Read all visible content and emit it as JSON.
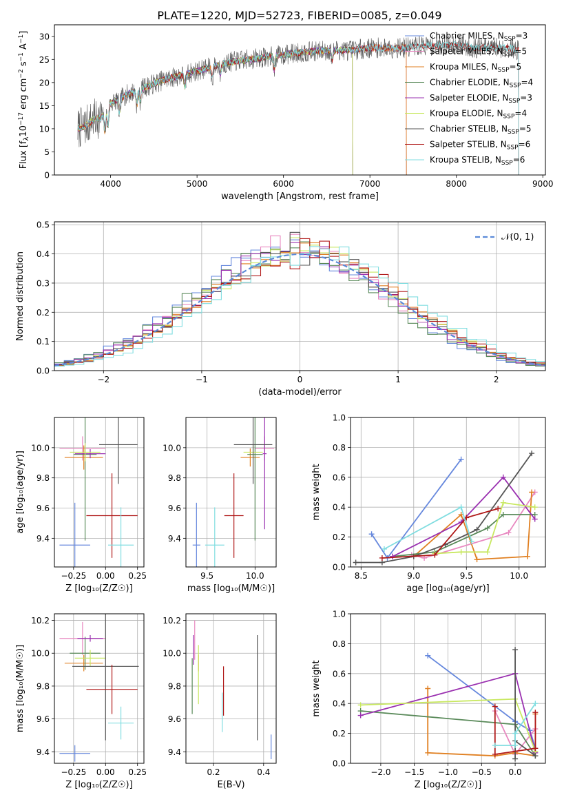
{
  "figure": {
    "title": "PLATE=1220, MJD=52723, FIBERID=0085, z=0.049"
  },
  "colors": {
    "Chabrier MILES": "#6688dd",
    "Salpeter MILES": "#e888c0",
    "Kroupa MILES": "#e07f20",
    "Chabrier ELODIE": "#5a8a5a",
    "Salpeter ELODIE": "#9a30b0",
    "Kroupa ELODIE": "#c8e860",
    "Chabrier STELIB": "#555555",
    "Salpeter STELIB": "#b01818",
    "Kroupa STELIB": "#80dde0"
  },
  "chart_data": [
    {
      "id": "spectrum",
      "type": "line",
      "xlabel": "wavelength [Angstrom, rest frame]",
      "ylabel_main": "Flux [f",
      "ylabel_sub": "λ",
      "ylabel_rest": "10",
      "ylabel_exp": "−17",
      "ylabel_tail": " erg cm",
      "ylabel_exp2": "−2",
      "ylabel_tail2": " s",
      "ylabel_exp3": "−1",
      "ylabel_tail3": " A",
      "ylabel_exp4": "−1",
      "ylabel_end": "]",
      "xlim": [
        3350,
        9030
      ],
      "ylim": [
        0,
        32.5
      ],
      "xticks": [
        4000,
        5000,
        6000,
        7000,
        8000,
        9000
      ],
      "yticks": [
        0,
        5,
        10,
        15,
        20,
        25,
        30
      ],
      "grid": false,
      "legend_position": "upper-right",
      "continuum": {
        "x": [
          3620,
          3700,
          3800,
          3900,
          4000,
          4100,
          4200,
          4400,
          4600,
          4800,
          5000,
          5200,
          5400,
          5600,
          5800,
          6000,
          6200,
          6400,
          6600,
          6800,
          7000,
          7200,
          7400,
          7600,
          7800,
          8000,
          8200,
          8400,
          8600,
          8720
        ],
        "y": [
          10,
          10.5,
          12,
          12.5,
          15.5,
          16.5,
          17.5,
          19,
          20.5,
          21.5,
          22.5,
          23.5,
          24.5,
          25,
          25.5,
          26,
          26.5,
          26.8,
          27,
          27,
          27.5,
          27.5,
          27.5,
          28,
          28,
          28.2,
          27.5,
          27.5,
          27.5,
          27
        ]
      },
      "series": [
        {
          "name": "Chabrier MILES",
          "nssp": "3",
          "xmax": 7420
        },
        {
          "name": "Salpeter MILES",
          "nssp": "5",
          "xmax": 7420
        },
        {
          "name": "Kroupa MILES",
          "nssp": "5",
          "xmax": 7420
        },
        {
          "name": "Chabrier ELODIE",
          "nssp": "4",
          "xmax": 6800
        },
        {
          "name": "Salpeter ELODIE",
          "nssp": "3",
          "xmax": 6800
        },
        {
          "name": "Kroupa ELODIE",
          "nssp": "4",
          "xmax": 6800
        },
        {
          "name": "Chabrier STELIB",
          "nssp": "5",
          "xmax": 8720
        },
        {
          "name": "Salpeter STELIB",
          "nssp": "6",
          "xmax": 8720
        },
        {
          "name": "Kroupa STELIB",
          "nssp": "6",
          "xmax": 8720
        }
      ]
    },
    {
      "id": "residuals",
      "type": "histogram",
      "xlabel": "(data-model)/error",
      "ylabel": "Normed distribution",
      "xlim": [
        -2.5,
        2.5
      ],
      "ylim": [
        0,
        0.51
      ],
      "xticks": [
        -2,
        -1,
        0,
        1,
        2
      ],
      "yticks": [
        0.0,
        0.1,
        0.2,
        0.3,
        0.4,
        0.5
      ],
      "grid": true,
      "bin_width": 0.1,
      "reference": {
        "name": "𝒩(0, 1)",
        "mean": 0,
        "sigma": 1
      }
    },
    {
      "id": "z-age",
      "type": "scatter",
      "xlabel": "Z [log₁₀(Z/Z☉)]",
      "ylabel": "age  [log₁₀(age/yr)]",
      "xlim": [
        -0.4,
        0.3
      ],
      "ylim": [
        9.21,
        10.2
      ],
      "xticks": [
        -0.25,
        0.0,
        0.25
      ],
      "yticks": [
        9.4,
        9.6,
        9.8,
        10.0
      ],
      "grid": true,
      "points": [
        {
          "series": "Chabrier MILES",
          "x": -0.24,
          "y": 9.355,
          "xerr": 0.12,
          "yerr": 0.28
        },
        {
          "series": "Salpeter MILES",
          "x": -0.18,
          "y": 9.995,
          "xerr": 0.18,
          "yerr": 0.08
        },
        {
          "series": "Kroupa MILES",
          "x": -0.17,
          "y": 9.935,
          "xerr": 0.15,
          "yerr": 0.08
        },
        {
          "series": "Chabrier ELODIE",
          "x": -0.16,
          "y": 9.955,
          "xerr": 0.09,
          "yerr": 0.57
        },
        {
          "series": "Salpeter ELODIE",
          "x": -0.12,
          "y": 9.96,
          "xerr": 0.12,
          "yerr": 0.03
        },
        {
          "series": "Kroupa ELODIE",
          "x": -0.16,
          "y": 9.97,
          "xerr": 0.12,
          "yerr": 0.06
        },
        {
          "series": "Chabrier STELIB",
          "x": 0.1,
          "y": 10.02,
          "xerr": 0.15,
          "yerr": 0.26
        },
        {
          "series": "Salpeter STELIB",
          "x": 0.05,
          "y": 9.55,
          "xerr": 0.2,
          "yerr": 0.28
        },
        {
          "series": "Kroupa STELIB",
          "x": 0.12,
          "y": 9.355,
          "xerr": 0.1,
          "yerr": 0.25
        }
      ]
    },
    {
      "id": "mass-age",
      "type": "scatter",
      "xlabel": "mass [log₁₀(M/M☉)]",
      "ylabel": "",
      "xlim": [
        9.28,
        10.22
      ],
      "ylim": [
        9.21,
        10.2
      ],
      "xticks": [
        9.5,
        10.0
      ],
      "yticks": [
        9.4,
        9.6,
        9.8,
        10.0
      ],
      "grid": true,
      "points": [
        {
          "series": "Chabrier MILES",
          "x": 9.39,
          "y": 9.355,
          "xerr": 0.04,
          "yerr": 0.28
        },
        {
          "series": "Salpeter MILES",
          "x": 10.1,
          "y": 9.995,
          "xerr": 0.1,
          "yerr": 0.08
        },
        {
          "series": "Kroupa MILES",
          "x": 9.95,
          "y": 9.935,
          "xerr": 0.1,
          "yerr": 0.06
        },
        {
          "series": "Chabrier ELODIE",
          "x": 10.0,
          "y": 9.955,
          "xerr": 0.08,
          "yerr": 0.57
        },
        {
          "series": "Salpeter ELODIE",
          "x": 10.1,
          "y": 9.96,
          "xerr": 0.02,
          "yerr": 0.5
        },
        {
          "series": "Kroupa ELODIE",
          "x": 9.98,
          "y": 9.97,
          "xerr": 0.1,
          "yerr": 0.05
        },
        {
          "series": "Chabrier STELIB",
          "x": 9.98,
          "y": 10.02,
          "xerr": 0.2,
          "yerr": 0.26
        },
        {
          "series": "Salpeter STELIB",
          "x": 9.78,
          "y": 9.55,
          "xerr": 0.1,
          "yerr": 0.28
        },
        {
          "series": "Kroupa STELIB",
          "x": 9.58,
          "y": 9.355,
          "xerr": 0.1,
          "yerr": 0.25
        }
      ]
    },
    {
      "id": "age-massweight",
      "type": "line",
      "xlabel": "age  [log₁₀(age/yr)]",
      "ylabel": "mass weight",
      "xlim": [
        8.4,
        10.25
      ],
      "ylim": [
        0,
        1.0
      ],
      "xticks": [
        8.5,
        9.0,
        9.5,
        10.0
      ],
      "yticks": [
        0.0,
        0.2,
        0.4,
        0.6,
        0.8,
        1.0
      ],
      "grid": true,
      "series": [
        {
          "name": "Chabrier MILES",
          "x": [
            8.6,
            8.75,
            9.45
          ],
          "y": [
            0.22,
            0.06,
            0.72
          ]
        },
        {
          "name": "Salpeter MILES",
          "x": [
            8.98,
            9.1,
            9.9,
            10.15
          ],
          "y": [
            0.08,
            0.06,
            0.23,
            0.5
          ]
        },
        {
          "name": "Kroupa MILES",
          "x": [
            9.0,
            9.45,
            9.6,
            10.08,
            10.12
          ],
          "y": [
            0.07,
            0.35,
            0.05,
            0.07,
            0.5
          ]
        },
        {
          "name": "Chabrier ELODIE",
          "x": [
            8.8,
            9.2,
            9.7,
            9.85,
            10.15
          ],
          "y": [
            0.07,
            0.1,
            0.26,
            0.35,
            0.35
          ]
        },
        {
          "name": "Salpeter ELODIE",
          "x": [
            8.8,
            9.45,
            9.85,
            10.15
          ],
          "y": [
            0.07,
            0.3,
            0.6,
            0.32
          ]
        },
        {
          "name": "Kroupa ELODIE",
          "x": [
            9.2,
            9.45,
            9.7,
            9.85,
            10.15
          ],
          "y": [
            0.09,
            0.1,
            0.1,
            0.43,
            0.4
          ]
        },
        {
          "name": "Chabrier STELIB",
          "x": [
            8.45,
            8.7,
            9.0,
            9.3,
            9.6,
            10.12
          ],
          "y": [
            0.03,
            0.03,
            0.07,
            0.15,
            0.25,
            0.76
          ]
        },
        {
          "name": "Salpeter STELIB",
          "x": [
            8.7,
            9.2,
            9.5,
            9.8
          ],
          "y": [
            0.06,
            0.08,
            0.33,
            0.39
          ]
        },
        {
          "name": "Kroupa STELIB",
          "x": [
            8.72,
            9.45,
            9.55
          ],
          "y": [
            0.12,
            0.4,
            0.17
          ]
        }
      ]
    },
    {
      "id": "z-mass",
      "type": "scatter",
      "xlabel": "Z [log₁₀(Z/Z☉)]",
      "ylabel": "mass [log₁₀(M/M☉)]",
      "xlim": [
        -0.4,
        0.3
      ],
      "ylim": [
        9.33,
        10.24
      ],
      "xticks": [
        -0.25,
        0.0,
        0.25
      ],
      "yticks": [
        9.4,
        9.6,
        9.8,
        10.0,
        10.2
      ],
      "grid": true,
      "points": [
        {
          "series": "Chabrier MILES",
          "x": -0.24,
          "y": 9.39,
          "xerr": 0.12,
          "yerr": 0.05
        },
        {
          "series": "Salpeter MILES",
          "x": -0.18,
          "y": 10.09,
          "xerr": 0.18,
          "yerr": 0.1
        },
        {
          "series": "Kroupa MILES",
          "x": -0.17,
          "y": 9.94,
          "xerr": 0.15,
          "yerr": 0.05
        },
        {
          "series": "Chabrier ELODIE",
          "x": -0.16,
          "y": 10.0,
          "xerr": 0.12,
          "yerr": 0.1
        },
        {
          "series": "Salpeter ELODIE",
          "x": -0.12,
          "y": 10.09,
          "xerr": 0.1,
          "yerr": 0.02
        },
        {
          "series": "Kroupa ELODIE",
          "x": -0.12,
          "y": 9.97,
          "xerr": 0.12,
          "yerr": 0.05
        },
        {
          "series": "Chabrier STELIB",
          "x": 0.0,
          "y": 9.92,
          "xerr": 0.26,
          "yerr": 0.45
        },
        {
          "series": "Salpeter STELIB",
          "x": 0.05,
          "y": 9.78,
          "xerr": 0.2,
          "yerr": 0.15
        },
        {
          "series": "Kroupa STELIB",
          "x": 0.12,
          "y": 9.575,
          "xerr": 0.1,
          "yerr": 0.1
        }
      ]
    },
    {
      "id": "ebv-mass",
      "type": "scatter",
      "xlabel": "E(B-V)",
      "ylabel": "",
      "xlim": [
        0.09,
        0.45
      ],
      "ylim": [
        9.33,
        10.24
      ],
      "xticks": [
        0.2,
        0.4
      ],
      "yticks": [
        9.4,
        9.6,
        9.8,
        10.0,
        10.2
      ],
      "grid": true,
      "points": [
        {
          "series": "Chabrier MILES",
          "x": 0.43,
          "y": 9.43,
          "xerr": 0,
          "yerr": 0.075
        },
        {
          "series": "Salpeter MILES",
          "x": 0.125,
          "y": 10.08,
          "xerr": 0,
          "yerr": 0.12
        },
        {
          "series": "Kroupa MILES",
          "x": 0.14,
          "y": 9.94,
          "xerr": 0,
          "yerr": 0.05
        },
        {
          "series": "Chabrier ELODIE",
          "x": 0.115,
          "y": 9.8,
          "xerr": 0,
          "yerr": 0.17
        },
        {
          "series": "Salpeter ELODIE",
          "x": 0.12,
          "y": 10.02,
          "xerr": 0,
          "yerr": 0.09
        },
        {
          "series": "Kroupa ELODIE",
          "x": 0.14,
          "y": 9.87,
          "xerr": 0,
          "yerr": 0.18
        },
        {
          "series": "Chabrier STELIB",
          "x": 0.375,
          "y": 9.79,
          "xerr": 0,
          "yerr": 0.32
        },
        {
          "series": "Salpeter STELIB",
          "x": 0.24,
          "y": 9.77,
          "xerr": 0,
          "yerr": 0.15
        },
        {
          "series": "Kroupa STELIB",
          "x": 0.235,
          "y": 9.64,
          "xerr": 0,
          "yerr": 0.12
        }
      ]
    },
    {
      "id": "z-massweight",
      "type": "line",
      "xlabel": "Z [log₁₀(Z/Z☉)]",
      "ylabel": "mass weight",
      "xlim": [
        -2.45,
        0.45
      ],
      "ylim": [
        0,
        1.0
      ],
      "xticks": [
        -2.0,
        -1.5,
        -1.0,
        -0.5,
        0.0
      ],
      "yticks": [
        0.0,
        0.2,
        0.4,
        0.6,
        0.8,
        1.0
      ],
      "grid": true,
      "series": [
        {
          "name": "Chabrier MILES",
          "x": [
            -1.3,
            0.0,
            0.22,
            0.3
          ],
          "y": [
            0.72,
            0.28,
            0.22,
            0.1
          ]
        },
        {
          "name": "Salpeter MILES",
          "x": [
            -0.3,
            0.0,
            0.3
          ],
          "y": [
            0.35,
            0.06,
            0.23
          ]
        },
        {
          "name": "Kroupa MILES",
          "x": [
            -1.3,
            -1.3,
            -0.3,
            0.0,
            0.3,
            0.3
          ],
          "y": [
            0.5,
            0.07,
            0.05,
            0.07,
            0.05,
            0.33
          ]
        },
        {
          "name": "Chabrier ELODIE",
          "x": [
            -2.3,
            0.0,
            0.3
          ],
          "y": [
            0.35,
            0.26,
            0.05
          ]
        },
        {
          "name": "Salpeter ELODIE",
          "x": [
            -2.3,
            0.0,
            0.3
          ],
          "y": [
            0.32,
            0.6,
            0.07
          ]
        },
        {
          "name": "Kroupa ELODIE",
          "x": [
            -2.3,
            0.0,
            0.3
          ],
          "y": [
            0.39,
            0.43,
            0.08
          ]
        },
        {
          "name": "Chabrier STELIB",
          "x": [
            0.0,
            0.0,
            0.0,
            0.3
          ],
          "y": [
            0.76,
            0.03,
            0.15,
            0.05
          ]
        },
        {
          "name": "Salpeter STELIB",
          "x": [
            -0.3,
            -0.3,
            0.3,
            0.3
          ],
          "y": [
            0.38,
            0.06,
            0.1,
            0.34
          ]
        },
        {
          "name": "Kroupa STELIB",
          "x": [
            -0.3,
            0.0,
            0.0,
            0.3
          ],
          "y": [
            0.12,
            0.12,
            0.2,
            0.4
          ]
        }
      ]
    }
  ]
}
